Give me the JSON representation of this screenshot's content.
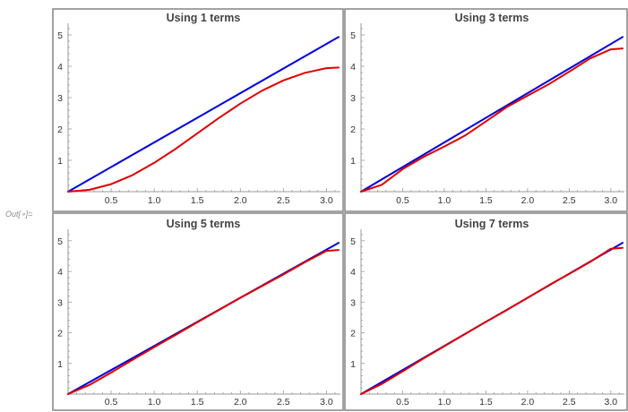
{
  "output_label": "Out[∘]=",
  "colors": {
    "reference": "#0000dd",
    "approximation": "#e00000",
    "frame": "#8c8c8c",
    "axis": "#999999"
  },
  "chart_data": [
    {
      "type": "line",
      "title": "Using 1 terms",
      "terms": 1,
      "xlim": [
        0,
        3.14159
      ],
      "ylim": [
        0,
        5.2
      ],
      "x_ticks": [
        "0.5",
        "1.0",
        "1.5",
        "2.0",
        "2.5",
        "3.0"
      ],
      "y_ticks": [
        "1",
        "2",
        "3",
        "4",
        "5"
      ],
      "series": [
        {
          "color": "#0000dd",
          "x": [
            0,
            3.1416
          ],
          "y": [
            0,
            4.9348
          ]
        },
        {
          "color": "#e00000",
          "x": [
            0,
            0.25,
            0.5,
            0.75,
            1.0,
            1.25,
            1.5,
            1.75,
            2.0,
            2.25,
            2.5,
            2.75,
            3.0,
            3.1416
          ],
          "y": [
            0,
            0.06,
            0.24,
            0.53,
            0.92,
            1.37,
            1.86,
            2.35,
            2.81,
            3.22,
            3.55,
            3.79,
            3.94,
            3.96
          ]
        }
      ]
    },
    {
      "type": "line",
      "title": "Using 3 terms",
      "terms": 3,
      "xlim": [
        0,
        3.14159
      ],
      "ylim": [
        0,
        5.2
      ],
      "x_ticks": [
        "0.5",
        "1.0",
        "1.5",
        "2.0",
        "2.5",
        "3.0"
      ],
      "y_ticks": [
        "1",
        "2",
        "3",
        "4",
        "5"
      ],
      "series": [
        {
          "color": "#0000dd",
          "x": [
            0,
            3.1416
          ],
          "y": [
            0,
            4.9348
          ]
        },
        {
          "color": "#e00000",
          "x": [
            0,
            0.25,
            0.5,
            0.75,
            1.0,
            1.25,
            1.5,
            1.75,
            2.0,
            2.25,
            2.5,
            2.75,
            3.0,
            3.1416
          ],
          "y": [
            0,
            0.22,
            0.72,
            1.11,
            1.44,
            1.79,
            2.24,
            2.7,
            3.06,
            3.42,
            3.83,
            4.25,
            4.54,
            4.57
          ]
        }
      ]
    },
    {
      "type": "line",
      "title": "Using 5 terms",
      "terms": 5,
      "xlim": [
        0,
        3.14159
      ],
      "ylim": [
        0,
        5.2
      ],
      "x_ticks": [
        "0.5",
        "1.0",
        "1.5",
        "2.0",
        "2.5",
        "3.0"
      ],
      "y_ticks": [
        "1",
        "2",
        "3",
        "4",
        "5"
      ],
      "series": [
        {
          "color": "#0000dd",
          "x": [
            0,
            3.1416
          ],
          "y": [
            0,
            4.9348
          ]
        },
        {
          "color": "#e00000",
          "x": [
            0,
            0.25,
            0.5,
            0.75,
            1.0,
            1.25,
            1.5,
            1.75,
            2.0,
            2.25,
            2.5,
            2.75,
            3.0,
            3.1416
          ],
          "y": [
            0,
            0.3,
            0.7,
            1.12,
            1.53,
            1.93,
            2.34,
            2.74,
            3.14,
            3.52,
            3.9,
            4.3,
            4.67,
            4.7
          ]
        }
      ]
    },
    {
      "type": "line",
      "title": "Using 7 terms",
      "terms": 7,
      "xlim": [
        0,
        3.14159
      ],
      "ylim": [
        0,
        5.2
      ],
      "x_ticks": [
        "0.5",
        "1.0",
        "1.5",
        "2.0",
        "2.5",
        "3.0"
      ],
      "y_ticks": [
        "1",
        "2",
        "3",
        "4",
        "5"
      ],
      "series": [
        {
          "color": "#0000dd",
          "x": [
            0,
            3.1416
          ],
          "y": [
            0,
            4.9348
          ]
        },
        {
          "color": "#e00000",
          "x": [
            0,
            0.25,
            0.5,
            0.75,
            1.0,
            1.25,
            1.5,
            1.75,
            2.0,
            2.25,
            2.5,
            2.75,
            3.0,
            3.1416
          ],
          "y": [
            0,
            0.33,
            0.74,
            1.16,
            1.56,
            1.96,
            2.36,
            2.74,
            3.14,
            3.54,
            3.92,
            4.31,
            4.74,
            4.77
          ]
        }
      ]
    }
  ]
}
